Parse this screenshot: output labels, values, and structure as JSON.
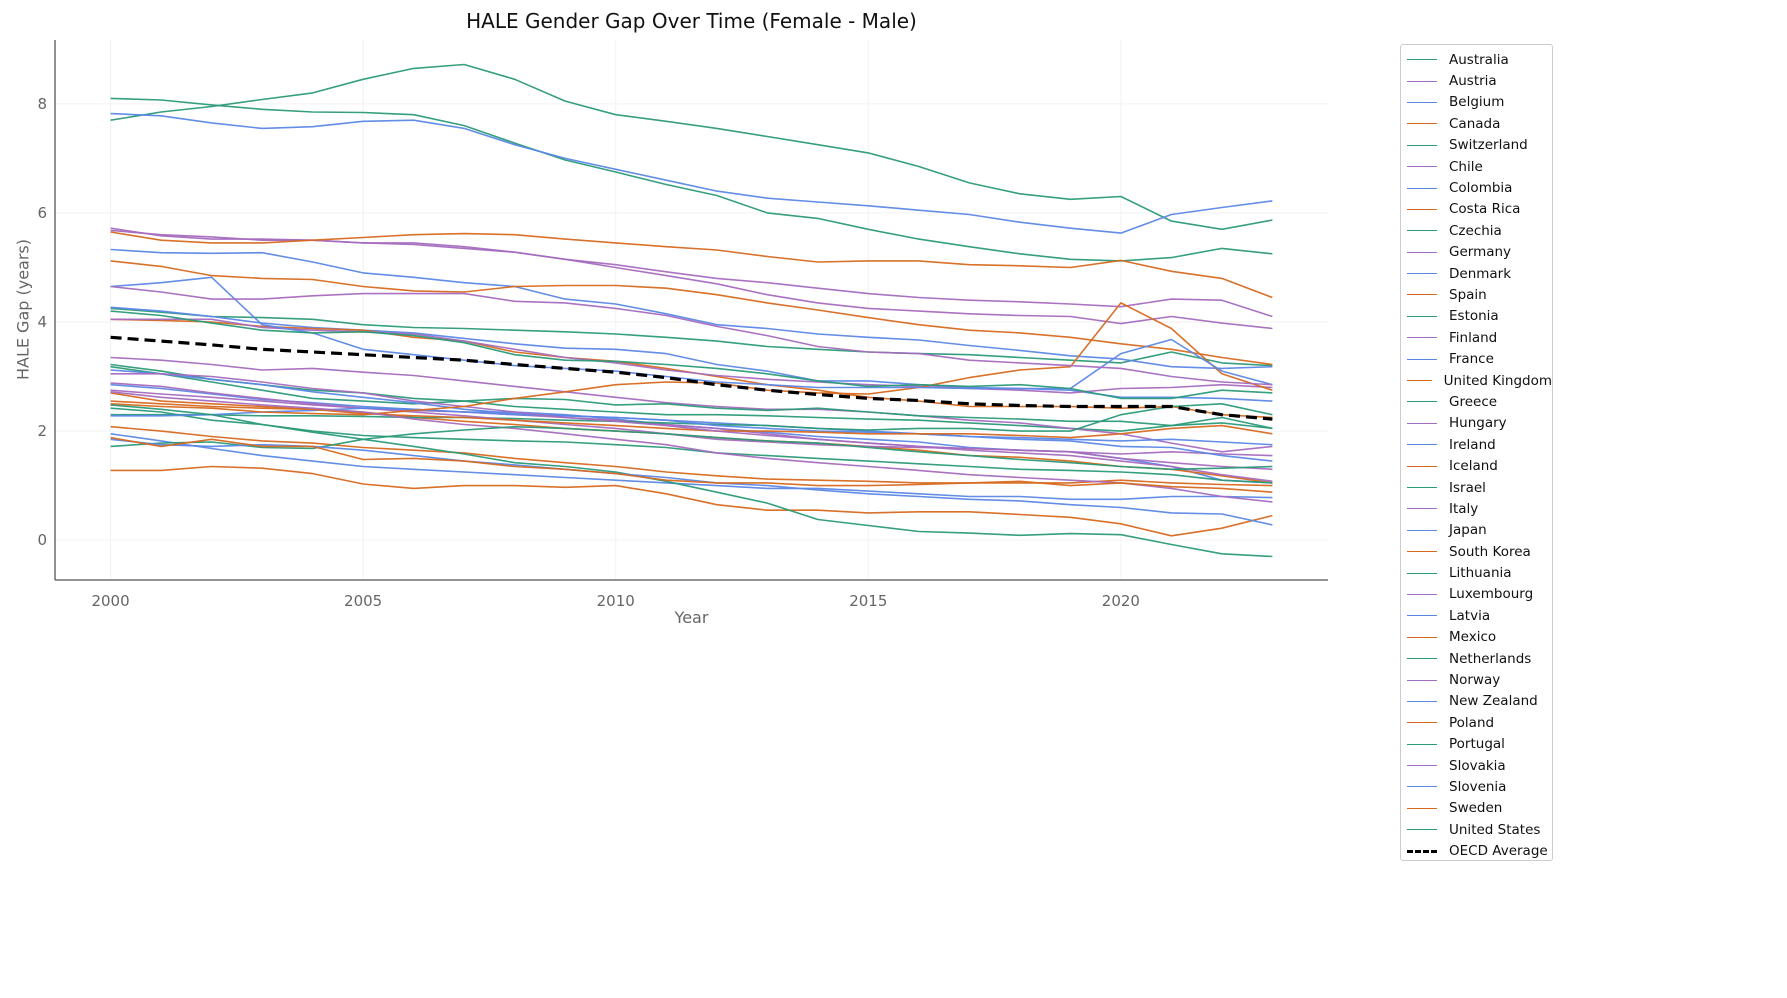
{
  "chart_data": {
    "type": "line",
    "title": "HALE Gender Gap Over Time (Female - Male)",
    "xlabel": "Year",
    "ylabel": "HALE Gap (years)",
    "xlim": [
      1998.9,
      2024.1
    ],
    "ylim": [
      -0.73,
      9.17
    ],
    "x_ticks": [
      2000,
      2005,
      2010,
      2015,
      2020
    ],
    "y_ticks": [
      0,
      2,
      4,
      6,
      8
    ],
    "grid": true,
    "legend_position": "outside-right",
    "colors": {
      "green": "#2a9a78",
      "purple": "#a56cbf",
      "blue": "#5b87e6",
      "orange": "#d7691f",
      "average": "#000000"
    },
    "x": [
      2000,
      2001,
      2002,
      2003,
      2004,
      2005,
      2006,
      2007,
      2008,
      2009,
      2010,
      2011,
      2012,
      2013,
      2014,
      2015,
      2016,
      2017,
      2018,
      2019,
      2020,
      2021,
      2022,
      2023
    ],
    "series": [
      {
        "name": "Australia",
        "color": "green",
        "values": [
          3.22,
          3.1,
          2.95,
          2.85,
          2.75,
          2.7,
          2.6,
          2.55,
          2.45,
          2.4,
          2.35,
          2.3,
          2.3,
          2.28,
          2.25,
          2.22,
          2.2,
          2.15,
          2.1,
          2.05,
          2.0,
          2.1,
          2.25,
          2.05
        ]
      },
      {
        "name": "Austria",
        "color": "purple",
        "values": [
          3.35,
          3.3,
          3.22,
          3.12,
          3.15,
          3.08,
          3.02,
          2.92,
          2.82,
          2.72,
          2.62,
          2.52,
          2.45,
          2.4,
          2.4,
          2.35,
          2.28,
          2.2,
          2.15,
          2.05,
          1.95,
          1.78,
          1.62,
          1.72
        ]
      },
      {
        "name": "Belgium",
        "color": "blue",
        "values": [
          2.85,
          2.78,
          2.68,
          2.58,
          2.52,
          2.45,
          2.4,
          2.35,
          2.35,
          2.3,
          2.22,
          2.12,
          2.05,
          1.98,
          1.9,
          1.85,
          1.8,
          1.7,
          1.65,
          1.62,
          1.5,
          1.35,
          1.1,
          1.05
        ]
      },
      {
        "name": "Canada",
        "color": "orange",
        "values": [
          2.55,
          2.5,
          2.45,
          2.42,
          2.4,
          2.35,
          2.25,
          2.18,
          2.12,
          2.05,
          2.0,
          1.95,
          1.88,
          1.82,
          1.78,
          1.72,
          1.65,
          1.55,
          1.52,
          1.45,
          1.35,
          1.3,
          1.18,
          1.05
        ]
      },
      {
        "name": "Switzerland",
        "color": "green",
        "values": [
          4.25,
          4.18,
          4.1,
          4.08,
          4.05,
          3.95,
          3.9,
          3.88,
          3.85,
          3.82,
          3.78,
          3.72,
          3.65,
          3.55,
          3.5,
          3.45,
          3.42,
          3.4,
          3.35,
          3.3,
          3.25,
          3.45,
          3.25,
          3.2
        ]
      },
      {
        "name": "Chile",
        "color": "purple",
        "values": [
          5.68,
          5.6,
          5.56,
          5.5,
          5.5,
          5.45,
          5.45,
          5.38,
          5.28,
          5.15,
          5.05,
          4.92,
          4.8,
          4.72,
          4.62,
          4.52,
          4.45,
          4.4,
          4.37,
          4.33,
          4.28,
          4.42,
          4.4,
          4.1
        ]
      },
      {
        "name": "Colombia",
        "color": "blue",
        "values": [
          5.33,
          5.27,
          5.26,
          5.27,
          5.1,
          4.9,
          4.82,
          4.72,
          4.65,
          4.42,
          4.33,
          4.15,
          3.95,
          3.88,
          3.78,
          3.72,
          3.67,
          3.57,
          3.48,
          3.38,
          3.32,
          3.18,
          3.15,
          3.18
        ]
      },
      {
        "name": "Costa Rica",
        "color": "orange",
        "values": [
          5.12,
          5.02,
          4.85,
          4.8,
          4.78,
          4.65,
          4.57,
          4.55,
          4.65,
          4.67,
          4.67,
          4.62,
          4.5,
          4.35,
          4.22,
          4.08,
          3.95,
          3.85,
          3.8,
          3.72,
          3.6,
          3.5,
          3.35,
          3.22
        ]
      },
      {
        "name": "Czechia",
        "color": "green",
        "values": [
          3.18,
          3.05,
          2.9,
          2.75,
          2.6,
          2.55,
          2.5,
          2.55,
          2.6,
          2.58,
          2.48,
          2.5,
          2.42,
          2.38,
          2.42,
          2.35,
          2.28,
          2.25,
          2.22,
          2.18,
          2.18,
          2.1,
          2.15,
          2.05
        ]
      },
      {
        "name": "Germany",
        "color": "purple",
        "values": [
          2.75,
          2.68,
          2.62,
          2.55,
          2.48,
          2.42,
          2.38,
          2.35,
          2.3,
          2.25,
          2.2,
          2.12,
          2.05,
          1.95,
          1.85,
          1.78,
          1.72,
          1.68,
          1.65,
          1.62,
          1.58,
          1.62,
          1.58,
          1.55
        ]
      },
      {
        "name": "Denmark",
        "color": "blue",
        "values": [
          4.27,
          4.2,
          4.1,
          3.98,
          3.9,
          3.85,
          3.8,
          3.7,
          3.6,
          3.52,
          3.5,
          3.42,
          3.22,
          3.1,
          2.92,
          2.92,
          2.85,
          2.8,
          2.78,
          2.75,
          2.62,
          2.62,
          2.6,
          2.55
        ]
      },
      {
        "name": "Spain",
        "color": "orange",
        "values": [
          4.05,
          4.03,
          4.0,
          3.92,
          3.88,
          3.85,
          3.72,
          3.65,
          3.45,
          3.35,
          3.28,
          3.15,
          3.0,
          2.85,
          2.75,
          2.62,
          2.55,
          2.45,
          2.45,
          2.45,
          2.42,
          2.45,
          2.3,
          2.25
        ]
      },
      {
        "name": "Estonia",
        "color": "green",
        "values": [
          8.1,
          8.07,
          7.98,
          7.9,
          7.85,
          7.84,
          7.8,
          7.6,
          7.28,
          6.97,
          6.75,
          6.52,
          6.32,
          6.0,
          5.9,
          5.7,
          5.52,
          5.38,
          5.25,
          5.15,
          5.12,
          5.18,
          5.35,
          5.25
        ]
      },
      {
        "name": "Finland",
        "color": "purple",
        "values": [
          5.72,
          5.58,
          5.52,
          5.52,
          5.5,
          5.45,
          5.42,
          5.35,
          5.28,
          5.15,
          5.0,
          4.85,
          4.7,
          4.5,
          4.35,
          4.25,
          4.2,
          4.15,
          4.12,
          4.1,
          3.97,
          4.1,
          3.98,
          3.88
        ]
      },
      {
        "name": "France",
        "color": "blue",
        "values": [
          3.12,
          3.05,
          2.95,
          2.85,
          2.72,
          2.62,
          2.52,
          2.4,
          2.32,
          2.28,
          2.25,
          2.2,
          2.15,
          2.1,
          2.05,
          2.0,
          1.95,
          1.9,
          1.85,
          1.82,
          1.72,
          1.7,
          1.55,
          1.45
        ]
      },
      {
        "name": "United Kingdom",
        "color": "orange",
        "values": [
          2.08,
          2.0,
          1.9,
          1.82,
          1.78,
          1.7,
          1.65,
          1.6,
          1.5,
          1.42,
          1.35,
          1.25,
          1.18,
          1.12,
          1.1,
          1.08,
          1.05,
          1.05,
          1.05,
          1.05,
          1.1,
          1.05,
          1.02,
          1.0
        ]
      },
      {
        "name": "Greece",
        "color": "green",
        "values": [
          2.3,
          2.3,
          2.3,
          2.28,
          2.28,
          2.27,
          2.25,
          2.25,
          2.23,
          2.2,
          2.18,
          2.15,
          2.12,
          2.1,
          2.05,
          2.02,
          2.05,
          2.05,
          2.0,
          2.0,
          2.3,
          2.45,
          2.5,
          2.3
        ]
      },
      {
        "name": "Hungary",
        "color": "purple",
        "values": [
          4.05,
          4.05,
          4.05,
          3.9,
          3.85,
          3.82,
          3.78,
          3.65,
          3.5,
          3.35,
          3.25,
          3.12,
          3.02,
          2.95,
          2.9,
          2.85,
          2.82,
          2.78,
          2.75,
          2.7,
          2.78,
          2.8,
          2.85,
          2.8
        ]
      },
      {
        "name": "Ireland",
        "color": "blue",
        "values": [
          1.95,
          1.82,
          1.68,
          1.55,
          1.45,
          1.35,
          1.3,
          1.25,
          1.2,
          1.15,
          1.1,
          1.05,
          1.0,
          0.95,
          0.95,
          0.9,
          0.85,
          0.8,
          0.8,
          0.75,
          0.75,
          0.8,
          0.8,
          0.78
        ]
      },
      {
        "name": "Iceland",
        "color": "orange",
        "values": [
          1.28,
          1.28,
          1.35,
          1.32,
          1.22,
          1.03,
          0.95,
          1.0,
          1.0,
          0.97,
          1.0,
          0.85,
          0.65,
          0.55,
          0.55,
          0.5,
          0.52,
          0.52,
          0.47,
          0.42,
          0.3,
          0.08,
          0.22,
          0.45
        ]
      },
      {
        "name": "Israel",
        "color": "green",
        "values": [
          2.42,
          2.35,
          2.2,
          2.12,
          2.0,
          1.92,
          1.88,
          1.85,
          1.82,
          1.8,
          1.75,
          1.7,
          1.6,
          1.55,
          1.5,
          1.45,
          1.4,
          1.35,
          1.3,
          1.28,
          1.25,
          1.2,
          1.1,
          1.05
        ]
      },
      {
        "name": "Italy",
        "color": "purple",
        "values": [
          2.88,
          2.82,
          2.7,
          2.6,
          2.5,
          2.42,
          2.35,
          2.28,
          2.2,
          2.12,
          2.05,
          1.95,
          1.85,
          1.8,
          1.75,
          1.72,
          1.7,
          1.68,
          1.65,
          1.62,
          1.5,
          1.42,
          1.35,
          1.3
        ]
      },
      {
        "name": "Japan",
        "color": "blue",
        "values": [
          2.28,
          2.28,
          2.3,
          2.35,
          2.38,
          2.42,
          2.4,
          2.35,
          2.3,
          2.28,
          2.25,
          2.2,
          2.1,
          2.05,
          2.0,
          1.98,
          1.95,
          1.9,
          1.88,
          1.85,
          1.82,
          1.85,
          1.8,
          1.75
        ]
      },
      {
        "name": "South Korea",
        "color": "orange",
        "values": [
          2.7,
          2.55,
          2.5,
          2.45,
          2.4,
          2.32,
          2.28,
          2.25,
          2.2,
          2.15,
          2.1,
          2.05,
          2.0,
          2.0,
          1.98,
          1.95,
          1.95,
          1.95,
          1.92,
          1.88,
          1.95,
          2.05,
          2.1,
          1.95
        ]
      },
      {
        "name": "Lithuania",
        "color": "green",
        "values": [
          7.7,
          7.85,
          7.95,
          8.08,
          8.2,
          8.45,
          8.65,
          8.72,
          8.45,
          8.05,
          7.8,
          7.68,
          7.55,
          7.4,
          7.25,
          7.1,
          6.85,
          6.55,
          6.35,
          6.25,
          6.3,
          5.85,
          5.7,
          5.87
        ]
      },
      {
        "name": "Luxembourg",
        "color": "purple",
        "values": [
          3.05,
          3.05,
          3.0,
          2.9,
          2.78,
          2.7,
          2.55,
          2.45,
          2.35,
          2.25,
          2.18,
          2.1,
          2.0,
          1.92,
          1.85,
          1.78,
          1.72,
          1.65,
          1.6,
          1.55,
          1.45,
          1.35,
          1.2,
          1.08
        ]
      },
      {
        "name": "Latvia",
        "color": "blue",
        "values": [
          7.82,
          7.78,
          7.65,
          7.55,
          7.58,
          7.68,
          7.7,
          7.55,
          7.25,
          7.0,
          6.8,
          6.6,
          6.4,
          6.27,
          6.2,
          6.13,
          6.05,
          5.97,
          5.83,
          5.72,
          5.63,
          5.97,
          6.1,
          6.22
        ]
      },
      {
        "name": "Mexico",
        "color": "orange",
        "values": [
          2.5,
          2.45,
          2.42,
          2.35,
          2.32,
          2.3,
          2.38,
          2.45,
          2.6,
          2.72,
          2.85,
          2.9,
          2.88,
          2.75,
          2.7,
          2.68,
          2.8,
          2.98,
          3.12,
          3.18,
          4.35,
          3.88,
          3.05,
          2.75
        ]
      },
      {
        "name": "Netherlands",
        "color": "green",
        "values": [
          2.48,
          2.4,
          2.3,
          2.12,
          1.98,
          1.85,
          1.72,
          1.58,
          1.42,
          1.35,
          1.25,
          1.08,
          0.88,
          0.68,
          0.38,
          0.27,
          0.16,
          0.13,
          0.09,
          0.12,
          0.1,
          -0.08,
          -0.25,
          -0.3
        ]
      },
      {
        "name": "Norway",
        "color": "purple",
        "values": [
          2.72,
          2.62,
          2.55,
          2.48,
          2.42,
          2.35,
          2.22,
          2.12,
          2.05,
          1.95,
          1.85,
          1.75,
          1.6,
          1.5,
          1.42,
          1.35,
          1.28,
          1.2,
          1.15,
          1.1,
          1.05,
          0.95,
          0.8,
          0.7
        ]
      },
      {
        "name": "New Zealand",
        "color": "blue",
        "values": [
          4.65,
          4.72,
          4.82,
          3.95,
          3.8,
          3.5,
          3.4,
          3.3,
          3.2,
          3.15,
          3.1,
          3.0,
          2.9,
          2.85,
          2.8,
          2.8,
          2.8,
          2.78,
          2.78,
          2.78,
          3.42,
          3.68,
          3.1,
          2.85
        ]
      },
      {
        "name": "Poland",
        "color": "orange",
        "values": [
          5.65,
          5.5,
          5.45,
          5.45,
          5.5,
          5.55,
          5.6,
          5.62,
          5.6,
          5.52,
          5.45,
          5.38,
          5.32,
          5.2,
          5.1,
          5.12,
          5.12,
          5.05,
          5.03,
          5.0,
          5.13,
          4.93,
          4.8,
          4.45
        ]
      },
      {
        "name": "Portugal",
        "color": "green",
        "values": [
          1.72,
          1.78,
          1.8,
          1.7,
          1.68,
          1.85,
          1.95,
          2.02,
          2.08,
          2.05,
          2.0,
          1.95,
          1.88,
          1.82,
          1.78,
          1.7,
          1.62,
          1.55,
          1.48,
          1.42,
          1.35,
          1.3,
          1.32,
          1.35
        ]
      },
      {
        "name": "Slovakia",
        "color": "purple",
        "values": [
          4.65,
          4.55,
          4.42,
          4.42,
          4.48,
          4.52,
          4.52,
          4.52,
          4.38,
          4.35,
          4.25,
          4.12,
          3.92,
          3.75,
          3.55,
          3.45,
          3.42,
          3.3,
          3.25,
          3.2,
          3.15,
          3.0,
          2.9,
          2.85
        ]
      },
      {
        "name": "Slovenia",
        "color": "blue",
        "values": [
          1.85,
          1.75,
          1.72,
          1.75,
          1.72,
          1.65,
          1.55,
          1.45,
          1.38,
          1.3,
          1.22,
          1.15,
          1.05,
          1.0,
          0.92,
          0.85,
          0.8,
          0.75,
          0.72,
          0.65,
          0.6,
          0.5,
          0.48,
          0.28
        ]
      },
      {
        "name": "Sweden",
        "color": "orange",
        "values": [
          1.88,
          1.72,
          1.85,
          1.72,
          1.72,
          1.48,
          1.5,
          1.45,
          1.35,
          1.3,
          1.22,
          1.1,
          1.05,
          1.05,
          1.0,
          1.0,
          1.02,
          1.05,
          1.08,
          1.0,
          1.05,
          0.98,
          0.95,
          0.88
        ]
      },
      {
        "name": "United States",
        "color": "green",
        "values": [
          4.2,
          4.12,
          3.98,
          3.85,
          3.8,
          3.82,
          3.75,
          3.62,
          3.4,
          3.3,
          3.28,
          3.22,
          3.15,
          3.05,
          2.92,
          2.82,
          2.85,
          2.82,
          2.85,
          2.78,
          2.6,
          2.6,
          2.75,
          2.7
        ]
      },
      {
        "name": "OECD Average",
        "color": "average",
        "dashed": true,
        "values": [
          3.72,
          3.65,
          3.58,
          3.5,
          3.45,
          3.4,
          3.35,
          3.3,
          3.22,
          3.15,
          3.08,
          2.98,
          2.85,
          2.75,
          2.67,
          2.6,
          2.56,
          2.5,
          2.47,
          2.45,
          2.45,
          2.45,
          2.3,
          2.22
        ]
      }
    ]
  }
}
